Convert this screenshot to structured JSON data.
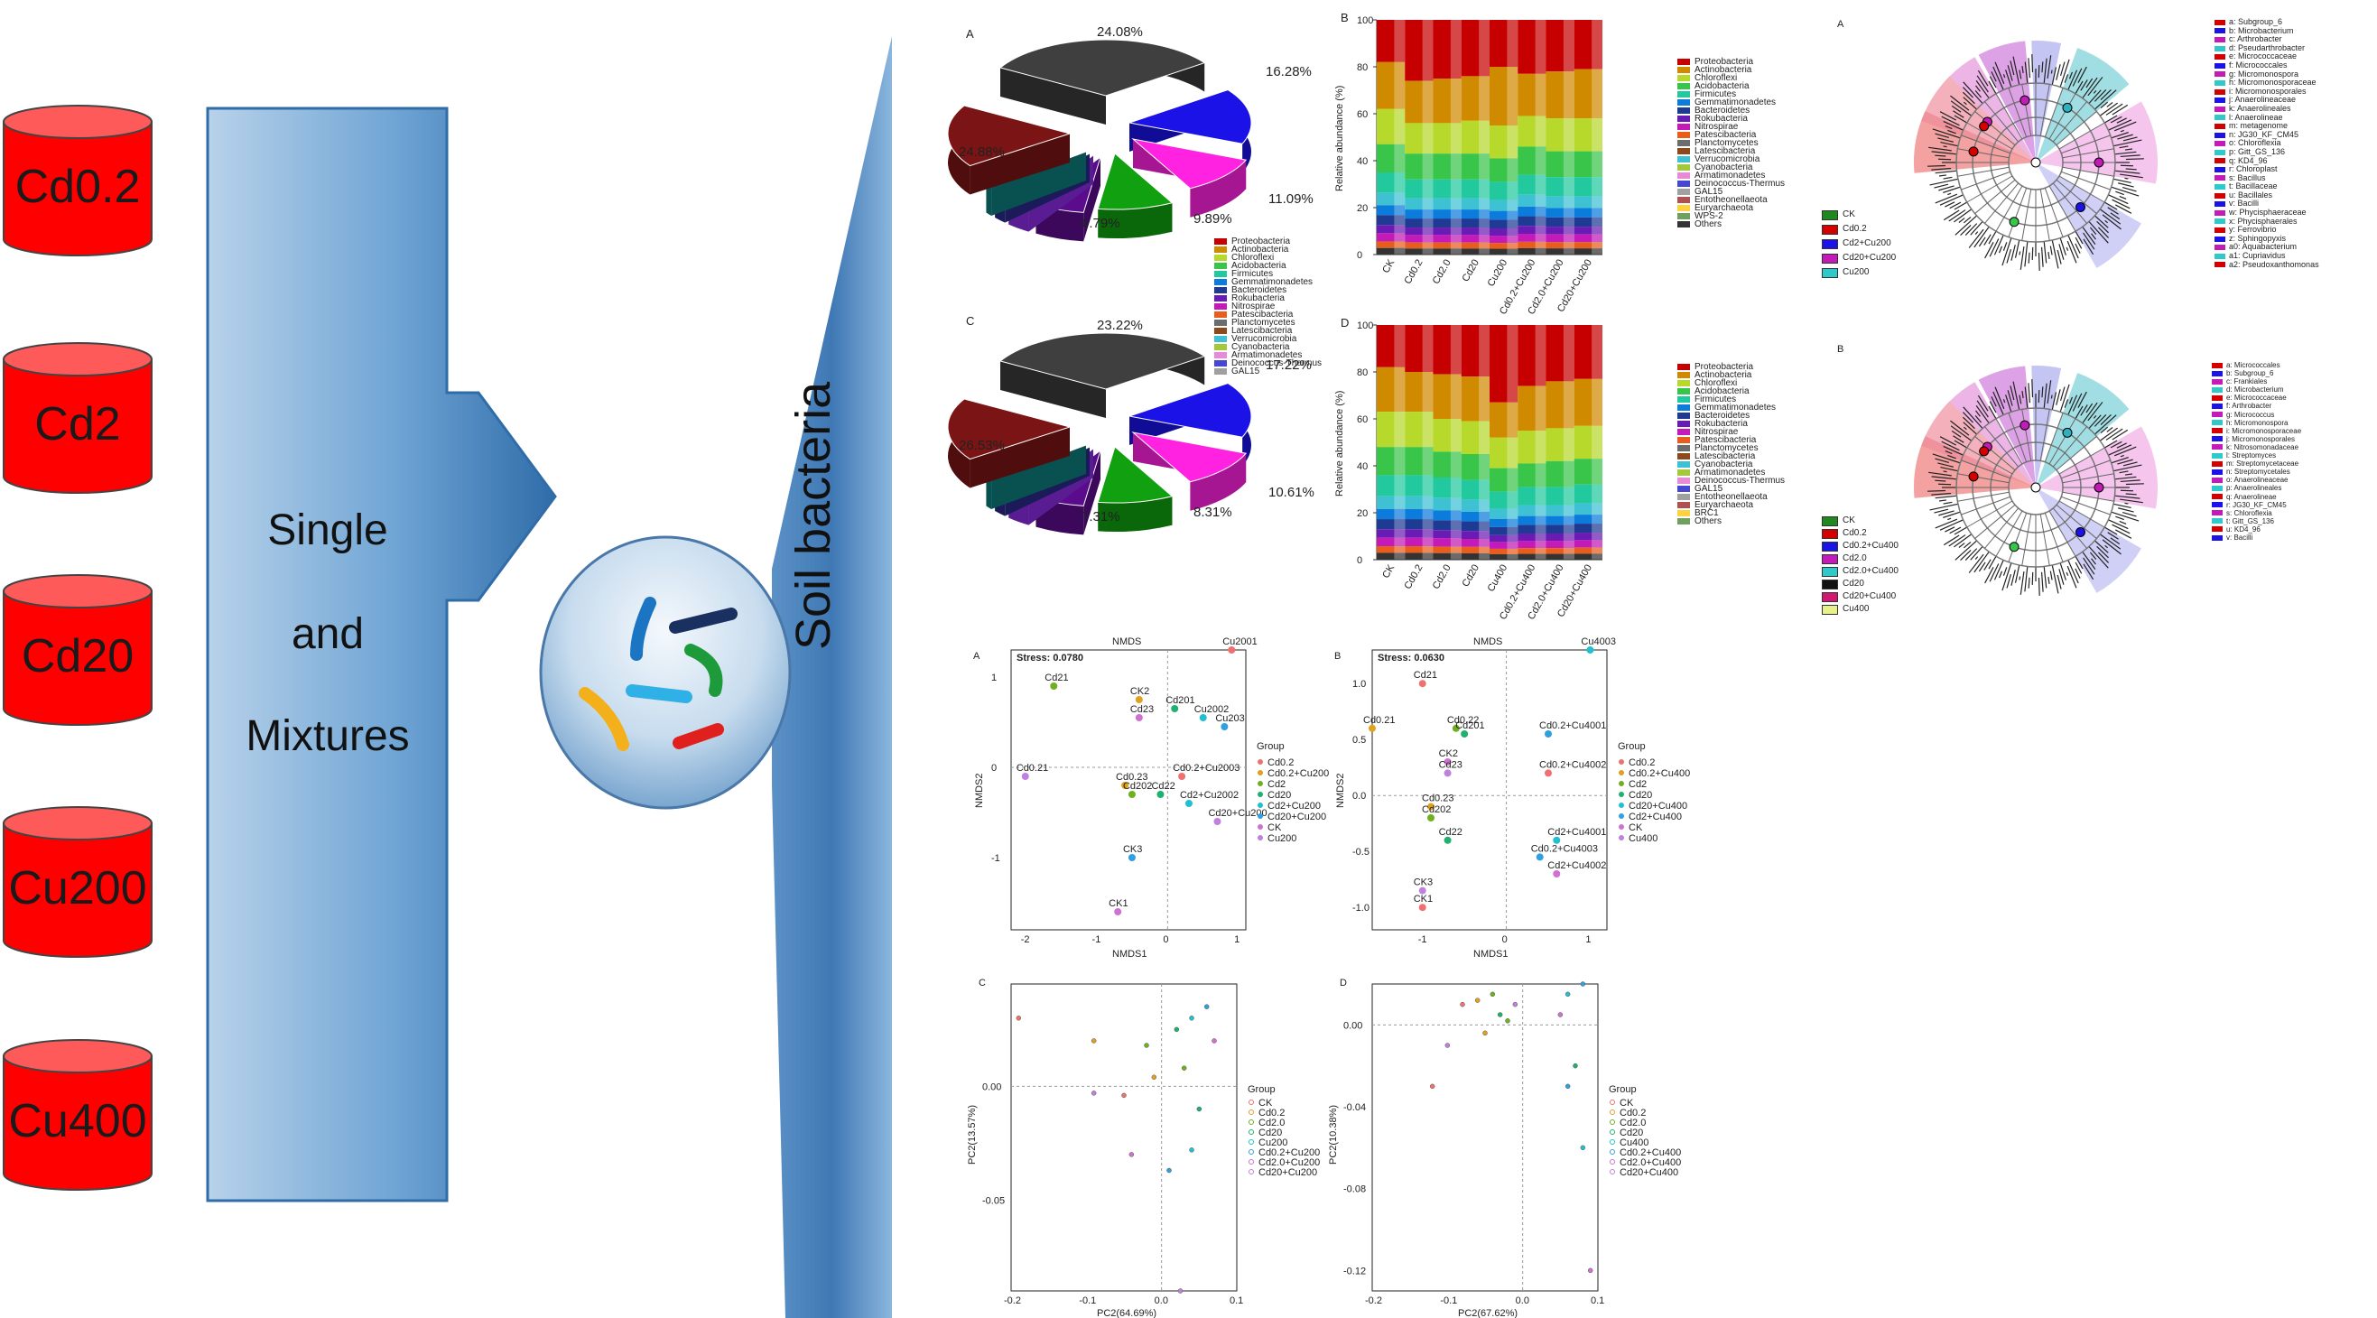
{
  "schematic": {
    "sources": [
      "Cd0.2",
      "Cd2",
      "Cd20",
      "Cu200",
      "Cu400"
    ],
    "arrow_words": [
      "Single",
      "and",
      "Mixtures"
    ],
    "target_label": "Soil bacteria",
    "colors": {
      "cylinder": "#ff0000",
      "cylinder_top": "#ff5a5a",
      "arrow": "#4a86c0"
    }
  },
  "pies": [
    {
      "letter": "A",
      "labels": [
        "24.08%",
        "16.28%",
        "11.09%",
        "9.89%",
        "6.79%",
        "24.88%"
      ]
    },
    {
      "letter": "C",
      "labels": [
        "23.22%",
        "17.22%",
        "10.61%",
        "8.31%",
        "7.31%",
        "26.53%"
      ]
    }
  ],
  "pie_legend": [
    "Proteobacteria",
    "Actinobacteria",
    "Chloroflexi",
    "Acidobacteria",
    "Firmicutes",
    "Gemmatimonadetes",
    "Bacteroidetes",
    "Rokubacteria",
    "Nitrospirae",
    "Patescibacteria",
    "Planctomycetes",
    "Latescibacteria",
    "Verrucomicrobia",
    "Cyanobacteria",
    "Armatimonadetes",
    "Deinococcus-Thermus",
    "GAL15"
  ],
  "chart_data": [
    {
      "type": "bar",
      "title": "B",
      "ylabel": "Relative abundance (%)",
      "ylim": [
        0,
        100
      ],
      "yticks": [
        "0",
        "20",
        "40",
        "60",
        "80",
        "100"
      ],
      "categories": [
        "CK",
        "Cd0.2",
        "Cd2.0",
        "Cd20",
        "Cu200",
        "Cd0.2+Cu200",
        "Cd2.0+Cu200",
        "Cd20+Cu200"
      ],
      "legend": [
        "Proteobacteria",
        "Actinobacteria",
        "Chloroflexi",
        "Acidobacteria",
        "Firmicutes",
        "Gemmatimonadetes",
        "Bacteroidetes",
        "Rokubacteria",
        "Nitrospirae",
        "Patescibacteria",
        "Planctomycetes",
        "Latescibacteria",
        "Verrucomicrobia",
        "Cyanobacteria",
        "Armatimonadetes",
        "Deinococcus-Thermus",
        "GAL15",
        "Entotheonellaeota",
        "Euryarchaeota",
        "WPS-2",
        "Others"
      ],
      "series_top_to_bottom": [
        {
          "name": "Proteobacteria",
          "values": [
            18,
            26,
            25,
            24,
            20,
            23,
            22,
            21
          ]
        },
        {
          "name": "Actinobacteria",
          "values": [
            20,
            18,
            19,
            19,
            25,
            18,
            20,
            21
          ]
        },
        {
          "name": "Chloroflexi",
          "values": [
            15,
            13,
            13,
            14,
            14,
            13,
            14,
            14
          ]
        },
        {
          "name": "Acidobacteria",
          "values": [
            12,
            11,
            11,
            11,
            10,
            12,
            11,
            11
          ]
        },
        {
          "name": "Rest",
          "values": [
            35,
            32,
            32,
            32,
            31,
            34,
            33,
            33
          ]
        }
      ]
    },
    {
      "type": "bar",
      "title": "D",
      "ylabel": "Relative abundance (%)",
      "ylim": [
        0,
        100
      ],
      "yticks": [
        "0",
        "20",
        "40",
        "60",
        "80",
        "100"
      ],
      "categories": [
        "CK",
        "Cd0.2",
        "Cd2.0",
        "Cd20",
        "Cu400",
        "Cd0.2+Cu400",
        "Cd2.0+Cu400",
        "Cd20+Cu400"
      ],
      "legend": [
        "Proteobacteria",
        "Actinobacteria",
        "Chloroflexi",
        "Acidobacteria",
        "Firmicutes",
        "Gemmatimonadetes",
        "Bacteroidetes",
        "Rokubacteria",
        "Nitrospirae",
        "Patescibacteria",
        "Planctomycetes",
        "Latescibacteria",
        "Cyanobacteria",
        "Armatimonadetes",
        "Deinococcus-Thermus",
        "GAL15",
        "Entotheonellaeota",
        "Euryarchaeota",
        "BRC1",
        "Others"
      ],
      "series_top_to_bottom": [
        {
          "name": "Proteobacteria",
          "values": [
            18,
            20,
            21,
            22,
            33,
            26,
            24,
            23
          ]
        },
        {
          "name": "Actinobacteria",
          "values": [
            19,
            17,
            19,
            19,
            15,
            19,
            20,
            20
          ]
        },
        {
          "name": "Chloroflexi",
          "values": [
            15,
            15,
            14,
            14,
            13,
            14,
            14,
            14
          ]
        },
        {
          "name": "Acidobacteria",
          "values": [
            12,
            12,
            11,
            11,
            10,
            10,
            11,
            11
          ]
        },
        {
          "name": "Rest",
          "values": [
            36,
            36,
            35,
            34,
            29,
            31,
            31,
            32
          ]
        }
      ]
    },
    {
      "type": "scatter",
      "title": "NMDS",
      "letter": "A",
      "stress": "Stress: 0.0780",
      "xlabel": "NMDS1",
      "ylabel": "NMDS2",
      "xticks": [
        "-2",
        "-1",
        "0",
        "1"
      ],
      "yticks": [
        "-1",
        "0",
        "1"
      ],
      "legend_title": "Group",
      "legend": [
        "Cd0.2",
        "Cd0.2+Cu200",
        "Cd2",
        "Cd20",
        "Cd2+Cu200",
        "Cd20+Cu200",
        "CK",
        "Cu200"
      ],
      "points": [
        "Cu2001",
        "CK2",
        "Cd21",
        "Cd201",
        "Cu2002",
        "Cu203",
        "Cd23",
        "Cd0.21",
        "Cd0.2+Cu2003",
        "Cd0.23",
        "Cd202",
        "Cd22",
        "Cd2+Cu2002",
        "CK3",
        "CK1",
        "Cd20+Cu200"
      ]
    },
    {
      "type": "scatter",
      "title": "NMDS",
      "letter": "B",
      "stress": "Stress: 0.0630",
      "xlabel": "NMDS1",
      "ylabel": "NMDS2",
      "xticks": [
        "-1",
        "0",
        "1"
      ],
      "yticks": [
        "-1.0",
        "-0.5",
        "0.0",
        "0.5",
        "1.0"
      ],
      "legend_title": "Group",
      "legend": [
        "Cd0.2",
        "Cd0.2+Cu400",
        "Cd2",
        "Cd20",
        "Cd20+Cu400",
        "Cd2+Cu400",
        "CK",
        "Cu400"
      ],
      "points": [
        "Cd21",
        "Cd0.21",
        "Cd0.22",
        "Cd201",
        "Cu4003",
        "Cd0.2+Cu4001",
        "CK2",
        "Cd23",
        "Cd0.2+Cu4002",
        "Cd0.23",
        "Cd202",
        "Cd22",
        "Cd2+Cu4001",
        "Cd0.2+Cu4003",
        "Cd2+Cu4002",
        "CK3",
        "CK1"
      ]
    },
    {
      "type": "scatter",
      "letter": "C",
      "xlabel": "PC2(64.69%)",
      "ylabel": "PC2(13.57%)",
      "xticks": [
        "-0.2",
        "-0.1",
        "0.0",
        "0.1"
      ],
      "yticks": [
        "0.00",
        "-0.05"
      ],
      "legend_title": "Group",
      "legend": [
        "CK",
        "Cd0.2",
        "Cd2.0",
        "Cd20",
        "Cu200",
        "Cd0.2+Cu200",
        "Cd2.0+Cu200",
        "Cd20+Cu200"
      ]
    },
    {
      "type": "scatter",
      "letter": "D",
      "xlabel": "PC2(67.62%)",
      "ylabel": "PC2(10.38%)",
      "xticks": [
        "-0.2",
        "-0.1",
        "0.0",
        "0.1"
      ],
      "yticks": [
        "0.00",
        "-0.04",
        "-0.08",
        "-0.12"
      ],
      "legend_title": "Group",
      "legend": [
        "CK",
        "Cd0.2",
        "Cd2.0",
        "Cd20",
        "Cu400",
        "Cd0.2+Cu400",
        "Cd2.0+Cu400",
        "Cd20+Cu400"
      ]
    }
  ],
  "cladograms": [
    {
      "letter": "A",
      "groups": [
        "CK",
        "Cd0.2",
        "Cd2+Cu200",
        "Cd20+Cu200",
        "Cu200"
      ],
      "taxa": [
        "a: Subgroup_6",
        "b: Microbacterium",
        "c: Arthrobacter",
        "d: Pseudarthrobacter",
        "e: Micrococcaceae",
        "f: Micrococcales",
        "g: Micromonospora",
        "h: Micromonosporaceae",
        "i: Micromonosporales",
        "j: Anaerolineaceae",
        "k: Anaerolineales",
        "l: Anaerolineae",
        "m: metagenome",
        "n: JG30_KF_CM45",
        "o: Chloroflexia",
        "p: Gitt_GS_136",
        "q: KD4_96",
        "r: Chloroplast",
        "s: Bacillus",
        "t: Bacillaceae",
        "u: Bacillales",
        "v: Bacilli",
        "w: Phycisphaeraceae",
        "x: Phycisphaerales",
        "y: Ferrovibrio",
        "z: Sphingopyxis",
        "a0: Aquabacterium",
        "a1: Cupriavidus",
        "a2: Pseudoxanthomonas"
      ]
    },
    {
      "letter": "B",
      "groups": [
        "CK",
        "Cd0.2",
        "Cd0.2+Cu400",
        "Cd2.0",
        "Cd2.0+Cu400",
        "Cd20",
        "Cd20+Cu400",
        "Cu400"
      ],
      "taxa": [
        "a: Micrococcales",
        "b: Subgroup_6",
        "c: Frankiales",
        "d: Microbacterium",
        "e: Micrococcaceae",
        "f: Arthrobacter",
        "g: Micrococcus",
        "h: Micromonospora",
        "i: Micromonosporaceae",
        "j: Micromonosporales",
        "k: Nitrosomonadaceae",
        "l: Streptomyces",
        "m: Streptomycetaceae",
        "n: Streptomycetales",
        "o: Anaerolineaceae",
        "p: Anaerolineales",
        "q: Anaerolineae",
        "r: JG30_KF_CM45",
        "s: Chloroflexia",
        "t: Gitt_GS_136",
        "u: KD4_96",
        "v: Bacilli"
      ]
    }
  ]
}
